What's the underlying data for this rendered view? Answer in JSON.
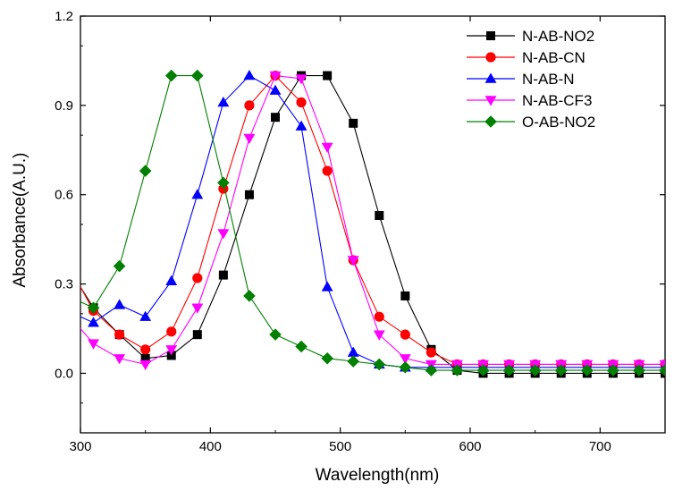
{
  "chart_data": {
    "type": "line",
    "title": "",
    "xlabel": "Wavelength(nm)",
    "ylabel": "Absorbance(A.U.)",
    "xlim": [
      300,
      750
    ],
    "ylim": [
      -0.2,
      1.2
    ],
    "x_ticks": [
      300,
      400,
      500,
      600,
      700
    ],
    "x_tick_labels": [
      "300",
      "400",
      "500",
      "600",
      "700"
    ],
    "y_ticks": [
      0.0,
      0.3,
      0.6,
      0.9,
      1.2
    ],
    "y_tick_labels": [
      "0.0",
      "0.3",
      "0.6",
      "0.9",
      "1.2"
    ],
    "grid": false,
    "legend_position": "top-right",
    "x": [
      310,
      330,
      350,
      370,
      390,
      410,
      430,
      450,
      470,
      490,
      510,
      530,
      550,
      570,
      590,
      610,
      630,
      650,
      670,
      690,
      710,
      730,
      750
    ],
    "series": [
      {
        "name": "N-AB-NO2",
        "color": "#000000",
        "marker": "square",
        "start": [
          300,
          0.29
        ],
        "values": [
          0.22,
          0.13,
          0.05,
          0.06,
          0.13,
          0.33,
          0.6,
          0.86,
          1.0,
          1.0,
          0.84,
          0.53,
          0.26,
          0.08,
          0.01,
          0.0,
          0.0,
          0.0,
          0.0,
          0.0,
          0.0,
          0.0,
          0.0
        ]
      },
      {
        "name": "N-AB-CN",
        "color": "#ff0000",
        "marker": "circle",
        "start": [
          300,
          0.29
        ],
        "values": [
          0.21,
          0.13,
          0.08,
          0.14,
          0.32,
          0.62,
          0.9,
          1.0,
          0.91,
          0.68,
          0.38,
          0.19,
          0.13,
          0.07,
          0.03,
          0.03,
          0.03,
          0.03,
          0.03,
          0.03,
          0.03,
          0.03,
          0.03
        ]
      },
      {
        "name": "N-AB-N",
        "color": "#0000ff",
        "marker": "triangle-up",
        "start": [
          300,
          0.19
        ],
        "values": [
          0.17,
          0.23,
          0.19,
          0.31,
          0.6,
          0.91,
          1.0,
          0.95,
          0.83,
          0.29,
          0.07,
          0.03,
          0.02,
          0.02,
          0.02,
          0.02,
          0.02,
          0.02,
          0.02,
          0.02,
          0.02,
          0.02,
          0.02
        ]
      },
      {
        "name": "N-AB-CF3",
        "color": "#ff00ff",
        "marker": "triangle-down",
        "start": [
          300,
          0.15
        ],
        "values": [
          0.1,
          0.05,
          0.03,
          0.08,
          0.22,
          0.47,
          0.79,
          1.0,
          0.99,
          0.76,
          0.38,
          0.13,
          0.05,
          0.03,
          0.03,
          0.03,
          0.03,
          0.03,
          0.03,
          0.03,
          0.03,
          0.03,
          0.03
        ]
      },
      {
        "name": "O-AB-NO2",
        "color": "#008000",
        "marker": "diamond",
        "start": [
          300,
          0.24
        ],
        "values": [
          0.22,
          0.36,
          0.68,
          1.0,
          1.0,
          0.64,
          0.26,
          0.13,
          0.09,
          0.05,
          0.04,
          0.03,
          0.02,
          0.01,
          0.01,
          0.01,
          0.01,
          0.01,
          0.01,
          0.01,
          0.01,
          0.01,
          0.01
        ]
      }
    ]
  }
}
